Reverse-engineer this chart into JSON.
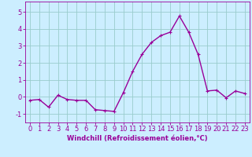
{
  "hours": [
    0,
    1,
    2,
    3,
    4,
    5,
    6,
    7,
    8,
    9,
    10,
    11,
    12,
    13,
    14,
    15,
    16,
    17,
    18,
    19,
    20,
    21,
    22,
    23
  ],
  "values": [
    -0.2,
    -0.15,
    -0.6,
    0.1,
    -0.15,
    -0.2,
    -0.2,
    -0.75,
    -0.8,
    -0.85,
    0.25,
    1.5,
    2.5,
    3.2,
    3.6,
    3.8,
    4.75,
    3.8,
    2.5,
    0.35,
    0.4,
    -0.05,
    0.35,
    0.2
  ],
  "line_color": "#990099",
  "marker": "+",
  "marker_size": 3,
  "bg_color": "#cceeff",
  "grid_color": "#99cccc",
  "xlabel": "Windchill (Refroidissement éolien,°C)",
  "xlabel_fontsize": 6,
  "ytick_labels": [
    "-1",
    "0",
    "1",
    "2",
    "3",
    "4",
    "5"
  ],
  "ytick_vals": [
    -1,
    0,
    1,
    2,
    3,
    4,
    5
  ],
  "ylim": [
    -1.5,
    5.6
  ],
  "xlim": [
    -0.5,
    23.5
  ],
  "tick_fontsize": 6,
  "line_width": 1.0
}
